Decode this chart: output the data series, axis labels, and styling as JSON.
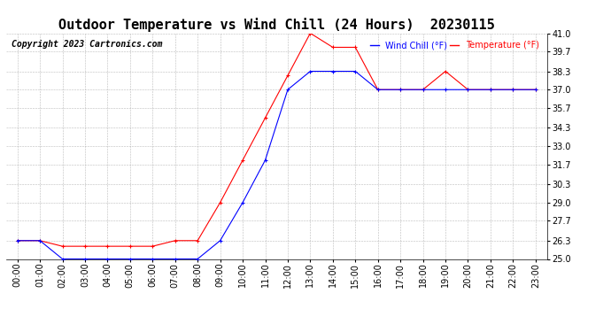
{
  "title": "Outdoor Temperature vs Wind Chill (24 Hours)  20230115",
  "copyright": "Copyright 2023 Cartronics.com",
  "legend_wind_chill": "Wind Chill (°F)",
  "legend_temp": "Temperature (°F)",
  "x_labels": [
    "00:00",
    "01:00",
    "02:00",
    "03:00",
    "04:00",
    "05:00",
    "06:00",
    "07:00",
    "08:00",
    "09:00",
    "10:00",
    "11:00",
    "12:00",
    "13:00",
    "14:00",
    "15:00",
    "16:00",
    "17:00",
    "18:00",
    "19:00",
    "20:00",
    "21:00",
    "22:00",
    "23:00"
  ],
  "temperature": [
    26.3,
    26.3,
    25.9,
    25.9,
    25.9,
    25.9,
    25.9,
    26.3,
    26.3,
    29.0,
    32.0,
    35.0,
    38.0,
    41.0,
    40.0,
    40.0,
    37.0,
    37.0,
    37.0,
    38.3,
    37.0,
    37.0,
    37.0,
    37.0
  ],
  "wind_chill": [
    26.3,
    26.3,
    25.0,
    25.0,
    25.0,
    25.0,
    25.0,
    25.0,
    25.0,
    26.3,
    29.0,
    32.0,
    37.0,
    38.3,
    38.3,
    38.3,
    37.0,
    37.0,
    37.0,
    37.0,
    37.0,
    37.0,
    37.0,
    37.0
  ],
  "temp_color": "#ff0000",
  "wind_chill_color": "#0000ff",
  "ylim_min": 25.0,
  "ylim_max": 41.0,
  "yticks": [
    25.0,
    26.3,
    27.7,
    29.0,
    30.3,
    31.7,
    33.0,
    34.3,
    35.7,
    37.0,
    38.3,
    39.7,
    41.0
  ],
  "background_color": "#ffffff",
  "grid_color": "#aaaaaa",
  "title_fontsize": 11,
  "axis_fontsize": 7,
  "copyright_fontsize": 7
}
